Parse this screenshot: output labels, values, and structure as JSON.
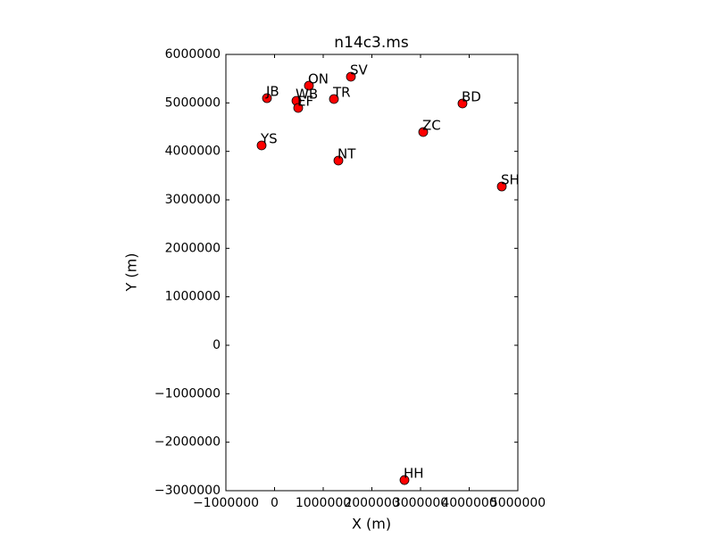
{
  "chart_data": {
    "type": "scatter",
    "title": "n14c3.ms",
    "xlabel": "X (m)",
    "ylabel": "Y (m)",
    "series": [
      {
        "color": "#ff0000",
        "labels": [
          "JB",
          "ON",
          "SV",
          "WB",
          "EF",
          "TR",
          "BD",
          "ZC",
          "YS",
          "NT",
          "SH",
          "HH"
        ],
        "x": [
          -156000,
          706000,
          1569000,
          450000,
          486000,
          1220000,
          3862000,
          3055000,
          -266000,
          1312000,
          4670000,
          2670000
        ],
        "values": [
          5098000,
          5356000,
          5540000,
          5043000,
          4896000,
          5080000,
          4988000,
          4399000,
          4123000,
          3810000,
          3276000,
          -2780000
        ]
      }
    ],
    "xlim": [
      -1000000,
      5000000
    ],
    "xticks": [
      {
        "value": -1000000,
        "label": "−1000000"
      },
      0,
      1000000,
      2000000,
      3000000,
      4000000,
      5000000
    ],
    "ylim": [
      -3000000,
      6000000
    ],
    "yticks": [
      {
        "value": -3000000,
        "label": "−3000000"
      },
      {
        "value": -2000000,
        "label": "−2000000"
      },
      {
        "value": -1000000,
        "label": "−1000000"
      },
      0,
      1000000,
      2000000,
      3000000,
      4000000,
      5000000,
      6000000
    ],
    "grid": false
  }
}
